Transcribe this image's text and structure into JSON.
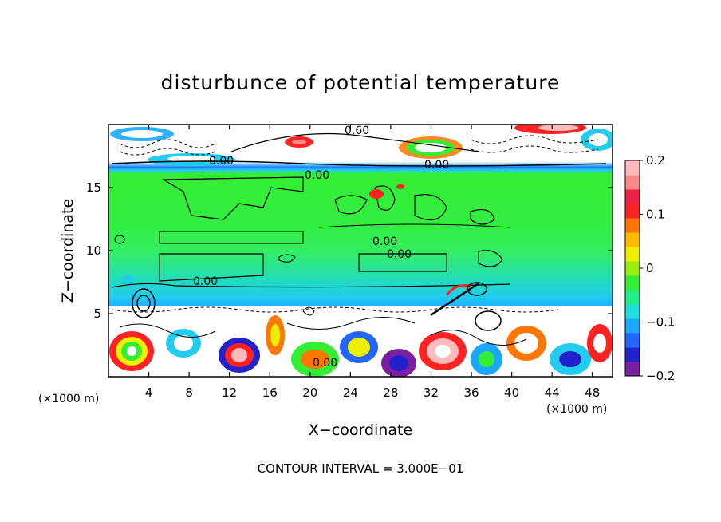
{
  "chart_data": {
    "type": "heatmap",
    "title": "disturbunce of potential temperature",
    "xlabel": "X−coordinate",
    "ylabel": "Z−coordinate",
    "x_unit_left": "(×1000 m)",
    "x_unit_right": "(×1000 m)",
    "xlim": [
      0,
      50
    ],
    "ylim": [
      0,
      20
    ],
    "x_ticks": [
      4,
      8,
      12,
      16,
      20,
      24,
      28,
      32,
      36,
      40,
      44,
      48
    ],
    "y_ticks": [
      5,
      10,
      15
    ],
    "colorbar": {
      "min": -0.2,
      "max": 0.2,
      "ticks": [
        0.2,
        0.1,
        0,
        -0.1,
        -0.2
      ],
      "tick_labels": [
        "0.2",
        "0.1",
        "0",
        "−0.1",
        "−0.2"
      ],
      "colors": [
        "#7a1fa2",
        "#2222cc",
        "#2266ff",
        "#1aa8ff",
        "#22dddd",
        "#22ee88",
        "#33ee33",
        "#99ee11",
        "#eeee00",
        "#ffbb00",
        "#ff7700",
        "#ff2222",
        "#ee2244",
        "#ff8888",
        "#ffbbbb"
      ]
    },
    "contour_labels": [
      "0.60",
      "0.00",
      "0.00",
      "0.00",
      "0.00",
      "0.00",
      "0.00",
      "0.00"
    ],
    "contour_interval": "CONTOUR INTERVAL = 3.000E−01",
    "grid": false
  }
}
